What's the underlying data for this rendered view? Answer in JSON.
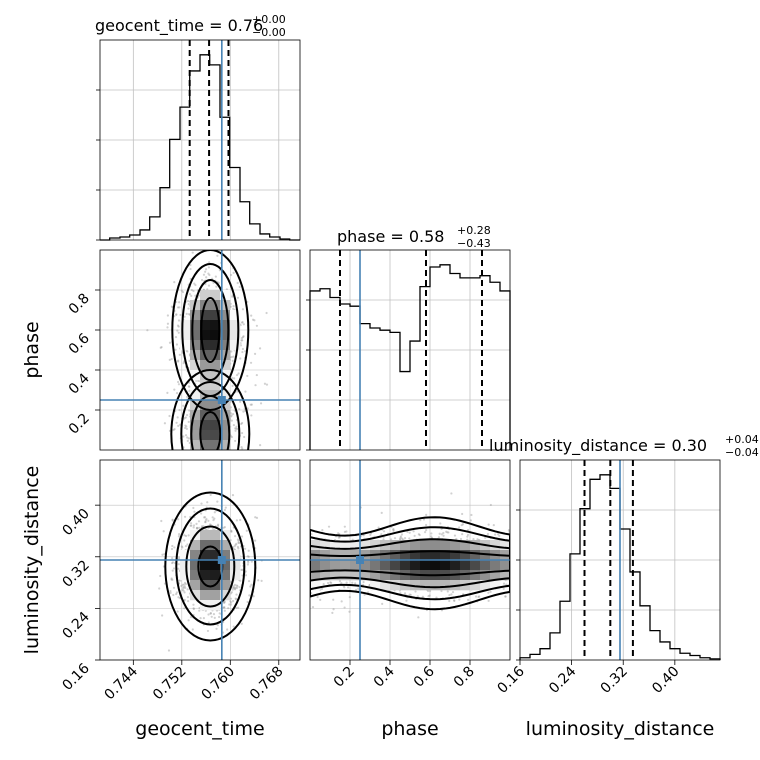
{
  "chart_data": {
    "type": "corner",
    "parameters": [
      "geocent_time",
      "phase",
      "luminosity_distance"
    ],
    "truth": {
      "geocent_time": 0.7586,
      "phase": 0.25,
      "luminosity_distance": 0.315
    },
    "colors": {
      "truth": "#4682b4",
      "hist": "#000000",
      "grid": "#c0c0c0",
      "scatter": "#9a9a9a"
    },
    "grid": true,
    "titles": [
      {
        "param": "geocent_time",
        "text": "geocent_time = 0.76",
        "plus": "+0.00",
        "minus": "−0.00"
      },
      {
        "param": "phase",
        "text": "phase = 0.58",
        "plus": "+0.28",
        "minus": "−0.43"
      },
      {
        "param": "luminosity_distance",
        "text": "luminosity_distance = 0.30",
        "plus": "+0.04",
        "minus": "−0.04"
      }
    ],
    "axis_labels": {
      "x": [
        "geocent_time",
        "phase",
        "luminosity_distance"
      ],
      "y": [
        "phase",
        "luminosity_distance"
      ]
    },
    "ranges": {
      "geocent_time": [
        0.7385,
        0.7715
      ],
      "phase": [
        0.0,
        1.0
      ],
      "luminosity_distance": [
        0.16,
        0.47
      ]
    },
    "ticks": {
      "geocent_time": [
        "0.744",
        "0.752",
        "0.760",
        "0.768"
      ],
      "phase": [
        "0.2",
        "0.4",
        "0.6",
        "0.8"
      ],
      "luminosity_distance": [
        "0.16",
        "0.24",
        "0.32",
        "0.40"
      ]
    },
    "histograms": {
      "geocent_time": {
        "edges": [
          0.7385,
          0.7401,
          0.7418,
          0.7434,
          0.7451,
          0.7467,
          0.7484,
          0.75,
          0.7517,
          0.7533,
          0.755,
          0.7566,
          0.7583,
          0.7599,
          0.7616,
          0.7632,
          0.7649,
          0.7665,
          0.7682,
          0.7698,
          0.7715
        ],
        "counts": [
          0.0,
          1.0,
          1.5,
          2.5,
          5.0,
          11.5,
          26.0,
          50.0,
          66.0,
          84.0,
          92.0,
          87.0,
          61.0,
          36.0,
          19.0,
          8.0,
          3.0,
          1.5,
          0.5,
          0.0
        ],
        "quantiles": [
          0.7533,
          0.7565,
          0.7597
        ]
      },
      "phase": {
        "edges": [
          0.0,
          0.05,
          0.1,
          0.15,
          0.2,
          0.25,
          0.3,
          0.35,
          0.4,
          0.45,
          0.5,
          0.55,
          0.6,
          0.65,
          0.7,
          0.75,
          0.8,
          0.85,
          0.9,
          0.95,
          1.0
        ],
        "counts": [
          73,
          74,
          70,
          67,
          66,
          58,
          56,
          55,
          54,
          36,
          50,
          75,
          84,
          85,
          81,
          79,
          79,
          80,
          77,
          73
        ],
        "quantiles": [
          0.15,
          0.58,
          0.86
        ]
      },
      "luminosity_distance": {
        "edges": [
          0.16,
          0.1755,
          0.191,
          0.2065,
          0.222,
          0.2375,
          0.253,
          0.2685,
          0.284,
          0.2995,
          0.315,
          0.3305,
          0.346,
          0.3615,
          0.377,
          0.3925,
          0.408,
          0.4235,
          0.439,
          0.4545,
          0.47
        ],
        "counts": [
          1.0,
          2.5,
          5.0,
          12.0,
          26.0,
          47.0,
          67.0,
          80.0,
          82.0,
          76.0,
          58.0,
          39.0,
          24.0,
          13.0,
          8.0,
          5.0,
          3.0,
          2.0,
          1.0,
          0.5
        ],
        "quantiles": [
          0.26,
          0.3,
          0.335
        ]
      }
    },
    "density_2d": {
      "geocent_time_phase": {
        "x_center": 0.7567,
        "x_sigma": 0.0028,
        "y_modes": [
          0.6,
          0.1
        ]
      },
      "geocent_time_luminosity_distance": {
        "x_center": 0.7567,
        "x_sigma": 0.0028,
        "y_center": 0.305,
        "y_sigma": 0.04
      },
      "phase_luminosity_distance": {
        "y_center": 0.31,
        "y_sigma": 0.03
      }
    }
  }
}
